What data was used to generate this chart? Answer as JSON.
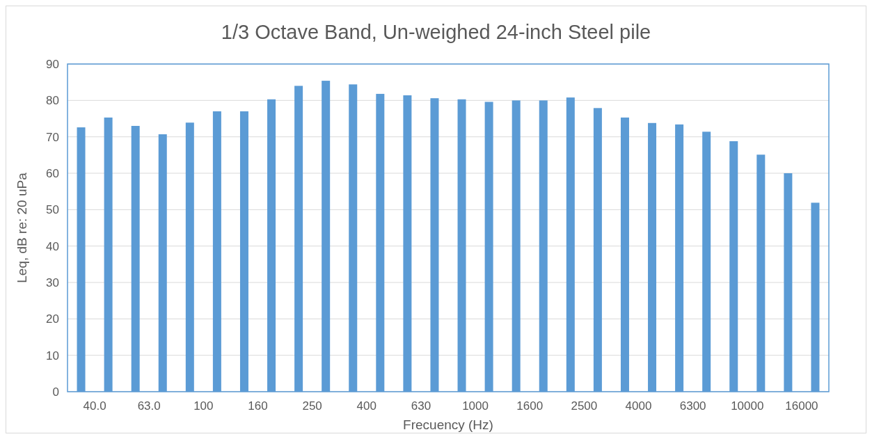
{
  "chart_data": {
    "type": "bar",
    "title": "1/3 Octave Band, Un-weighed 24-inch Steel pile",
    "xlabel": "Frecuency (Hz)",
    "ylabel": "Leq, dB re: 20 uPa",
    "categories": [
      "40.0",
      "63.0",
      "100",
      "160",
      "250",
      "400",
      "630",
      "1000",
      "1600",
      "2500",
      "4000",
      "6300",
      "10000",
      "16000"
    ],
    "series": [
      {
        "color": "#5b9bd5",
        "values": [
          72.6,
          73.0,
          73.9,
          77.0,
          84.0,
          84.4,
          81.4,
          80.3,
          80.0,
          80.8,
          75.3,
          73.4,
          68.8,
          60.0
        ]
      },
      {
        "color": "#5b9bd5",
        "values": [
          75.3,
          70.7,
          77.0,
          80.3,
          85.4,
          81.8,
          80.6,
          79.6,
          80.0,
          77.9,
          73.8,
          71.4,
          65.1,
          51.9
        ]
      }
    ],
    "ylim": [
      0,
      90
    ],
    "yticks": [
      0,
      10,
      20,
      30,
      40,
      50,
      60,
      70,
      80,
      90
    ],
    "grid": "y"
  }
}
